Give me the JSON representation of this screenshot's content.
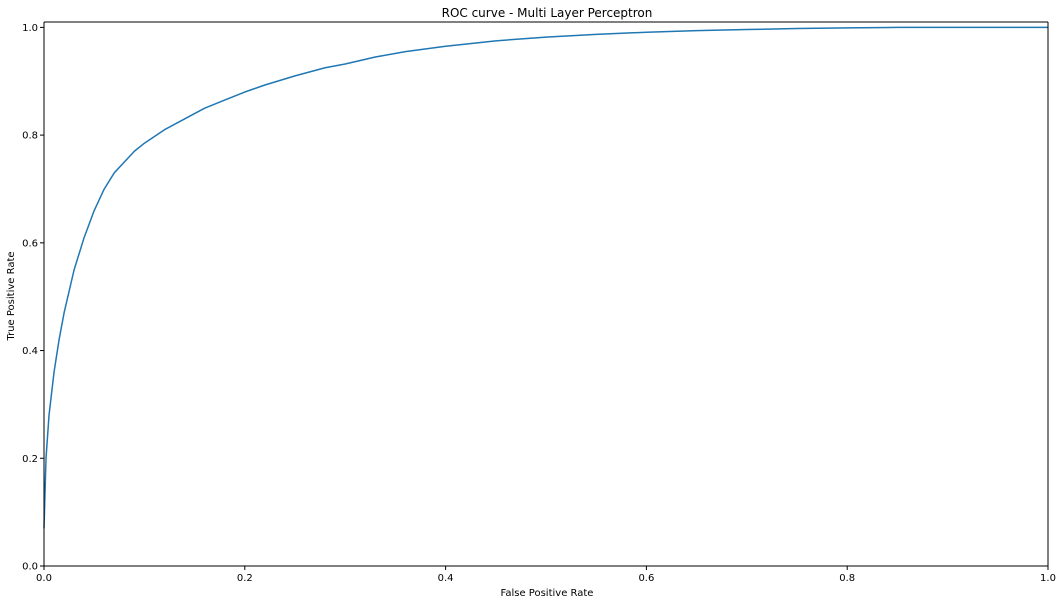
{
  "chart_data": {
    "type": "line",
    "title": "ROC curve - Multi Layer Perceptron",
    "xlabel": "False Positive Rate",
    "ylabel": "True Positive Rate",
    "xlim": [
      0.0,
      1.0
    ],
    "ylim": [
      0.0,
      1.01
    ],
    "x_ticks": [
      "0.0",
      "0.2",
      "0.4",
      "0.6",
      "0.8",
      "1.0"
    ],
    "y_ticks": [
      "0.0",
      "0.2",
      "0.4",
      "0.6",
      "0.8",
      "1.0"
    ],
    "grid": false,
    "line_color": "#1f77b4",
    "series": [
      {
        "x": [
          0.0,
          0.002,
          0.005,
          0.01,
          0.015,
          0.02,
          0.03,
          0.04,
          0.05,
          0.06,
          0.07,
          0.08,
          0.09,
          0.1,
          0.12,
          0.14,
          0.16,
          0.18,
          0.2,
          0.22,
          0.25,
          0.28,
          0.3,
          0.33,
          0.36,
          0.4,
          0.45,
          0.5,
          0.55,
          0.6,
          0.65,
          0.7,
          0.75,
          0.8,
          0.85,
          0.9,
          0.95,
          1.0
        ],
        "y": [
          0.07,
          0.2,
          0.28,
          0.36,
          0.42,
          0.47,
          0.55,
          0.61,
          0.66,
          0.7,
          0.73,
          0.75,
          0.77,
          0.785,
          0.81,
          0.83,
          0.85,
          0.865,
          0.88,
          0.893,
          0.91,
          0.925,
          0.932,
          0.945,
          0.955,
          0.965,
          0.975,
          0.982,
          0.987,
          0.991,
          0.994,
          0.996,
          0.998,
          0.999,
          1.0,
          1.0,
          1.0,
          1.0
        ]
      }
    ]
  }
}
